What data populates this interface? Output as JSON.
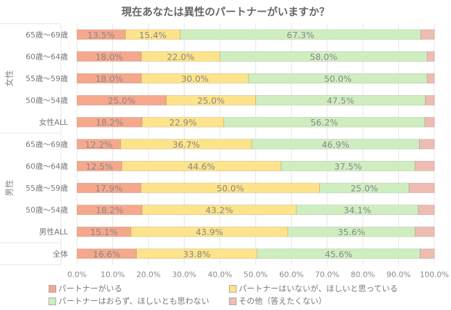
{
  "chart_data": {
    "type": "bar",
    "orientation": "horizontal",
    "stacked": true,
    "title": "現在あなたは異性のパートナーがいますか？",
    "groups": [
      {
        "label": "女性",
        "categories": [
          0,
          1,
          2,
          3,
          4
        ]
      },
      {
        "label": "男性",
        "categories": [
          5,
          6,
          7,
          8,
          9
        ]
      },
      {
        "label": "",
        "categories": [
          10
        ]
      }
    ],
    "categories": [
      "65歳～69歳",
      "60歳～64歳",
      "55歳～59歳",
      "50歳～54歳",
      "女性ALL",
      "65歳～69歳",
      "60歳～64歳",
      "55歳～59歳",
      "50歳～54歳",
      "男性ALL",
      "全体"
    ],
    "series": [
      {
        "name": "パートナーがいる",
        "color": "#f6a88c",
        "values": [
          13.5,
          18.0,
          18.0,
          25.0,
          18.2,
          12.2,
          12.5,
          17.9,
          18.2,
          15.1,
          16.6
        ]
      },
      {
        "name": "パートナーはいないが、ほしいと思っている",
        "color": "#fde38a",
        "values": [
          15.4,
          22.0,
          30.0,
          25.0,
          22.9,
          36.7,
          44.6,
          50.0,
          43.2,
          43.9,
          33.8
        ]
      },
      {
        "name": "パートナーはおらず、ほしいとも思わない",
        "color": "#cfeec0",
        "values": [
          67.3,
          58.0,
          50.0,
          47.5,
          56.2,
          46.9,
          37.5,
          25.0,
          34.1,
          35.6,
          45.6
        ]
      },
      {
        "name": "その他（答えたくない）",
        "color": "#efbcb3",
        "values": [
          3.8,
          2.0,
          2.0,
          2.5,
          2.7,
          4.2,
          5.4,
          7.1,
          4.5,
          5.4,
          4.0
        ],
        "labels_shown": false
      }
    ],
    "xlim": [
      0,
      100
    ],
    "xticks": [
      "0.0%",
      "10.0%",
      "20.0%",
      "30.0%",
      "40.0%",
      "50.0%",
      "60.0%",
      "70.0%",
      "80.0%",
      "90.0%",
      "100.0%"
    ],
    "grid": true,
    "legend": "bottom"
  }
}
